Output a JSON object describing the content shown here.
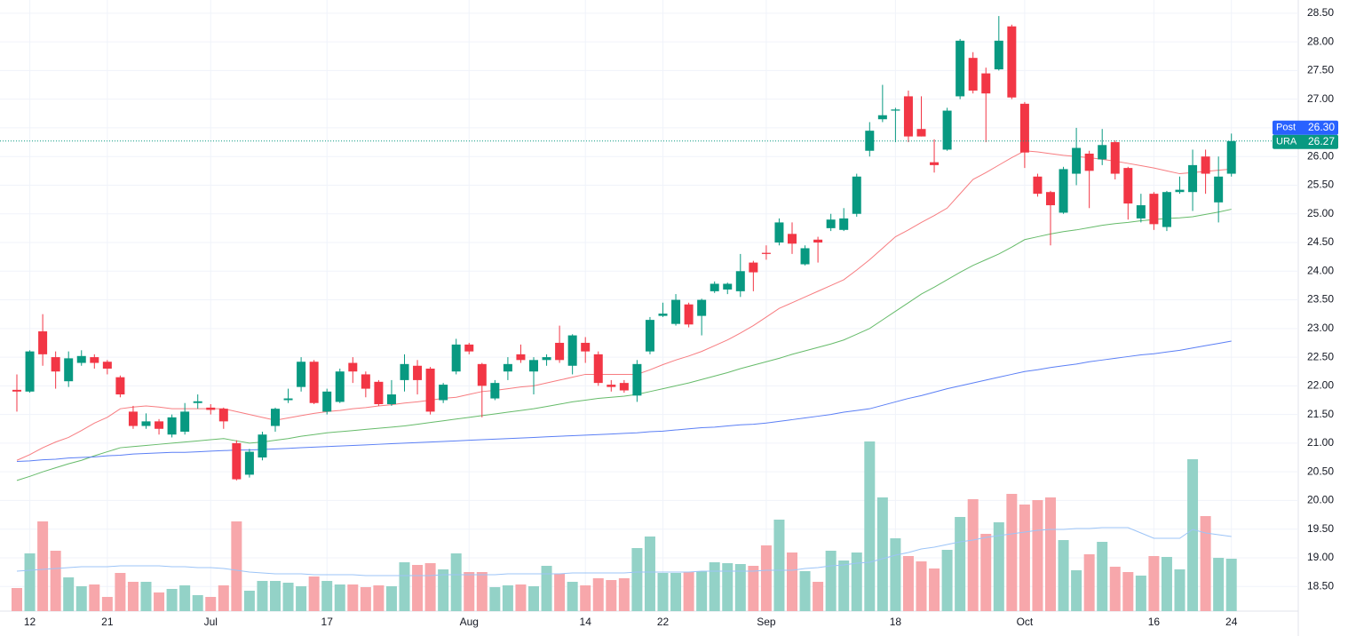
{
  "chart_data": {
    "type": "candlestick",
    "categories": [
      null,
      "12",
      null,
      null,
      null,
      null,
      null,
      "21",
      null,
      null,
      null,
      null,
      null,
      null,
      null,
      "Jul",
      null,
      null,
      null,
      null,
      null,
      null,
      null,
      null,
      "17",
      null,
      null,
      null,
      null,
      null,
      null,
      null,
      null,
      null,
      null,
      "Aug",
      null,
      null,
      null,
      null,
      null,
      null,
      null,
      null,
      "14",
      null,
      null,
      null,
      null,
      null,
      "22",
      null,
      null,
      null,
      null,
      null,
      null,
      null,
      "Sep",
      null,
      null,
      null,
      null,
      null,
      null,
      null,
      null,
      null,
      "18",
      null,
      null,
      null,
      null,
      null,
      null,
      null,
      null,
      null,
      "Oct",
      null,
      null,
      null,
      null,
      null,
      null,
      null,
      null,
      null,
      "16",
      null,
      null,
      null,
      null,
      null,
      "24"
    ],
    "open": [
      21.93,
      21.9,
      22.95,
      22.5,
      22.08,
      22.4,
      22.5,
      22.42,
      22.15,
      21.55,
      21.3,
      21.38,
      21.15,
      21.2,
      21.7,
      21.62,
      21.6,
      21.0,
      20.45,
      20.75,
      21.3,
      21.75,
      21.98,
      22.42,
      21.55,
      21.72,
      22.4,
      22.2,
      22.07,
      21.68,
      22.1,
      22.35,
      22.3,
      21.75,
      22.25,
      22.72,
      22.38,
      21.78,
      22.25,
      22.55,
      22.25,
      22.45,
      22.75,
      22.35,
      22.75,
      22.55,
      22.02,
      22.05,
      21.83,
      22.6,
      23.22,
      23.08,
      23.42,
      23.22,
      23.65,
      23.68,
      23.65,
      24.15,
      24.32,
      24.5,
      24.65,
      24.12,
      24.55,
      24.75,
      24.72,
      25.0,
      26.1,
      26.65,
      26.8,
      27.05,
      26.48,
      25.9,
      26.12,
      27.05,
      27.72,
      27.45,
      27.52,
      28.27,
      26.92,
      25.65,
      25.38,
      25.02,
      25.7,
      26.05,
      25.95,
      26.25,
      25.8,
      24.92,
      25.35,
      24.77,
      25.38,
      25.38,
      26.0,
      25.2,
      25.7
    ],
    "high": [
      22.2,
      22.62,
      23.25,
      22.6,
      22.6,
      22.62,
      22.55,
      22.45,
      22.18,
      21.65,
      21.52,
      21.42,
      21.5,
      21.7,
      21.85,
      21.68,
      21.62,
      21.05,
      20.9,
      21.2,
      21.62,
      21.95,
      22.5,
      22.45,
      21.95,
      22.3,
      22.5,
      22.25,
      22.1,
      22.1,
      22.55,
      22.45,
      22.33,
      22.05,
      22.82,
      22.75,
      22.4,
      22.1,
      22.5,
      22.72,
      22.5,
      22.55,
      23.05,
      22.9,
      22.85,
      22.6,
      22.1,
      22.1,
      22.45,
      23.2,
      23.45,
      23.6,
      23.45,
      23.52,
      23.82,
      23.8,
      24.3,
      24.18,
      24.45,
      24.92,
      24.85,
      24.45,
      24.6,
      25.0,
      25.1,
      25.7,
      26.6,
      27.25,
      26.85,
      27.15,
      27.05,
      26.3,
      26.85,
      28.05,
      27.82,
      27.55,
      28.45,
      28.3,
      26.95,
      25.7,
      25.4,
      25.82,
      26.5,
      26.1,
      26.48,
      26.28,
      25.82,
      25.35,
      25.38,
      25.4,
      25.65,
      26.12,
      26.12,
      26.0,
      26.4
    ],
    "low": [
      21.55,
      21.88,
      22.35,
      21.95,
      21.98,
      22.35,
      22.3,
      22.2,
      21.8,
      21.25,
      21.25,
      21.15,
      21.1,
      21.15,
      21.6,
      21.5,
      21.25,
      20.35,
      20.4,
      20.7,
      21.2,
      21.7,
      21.9,
      21.68,
      21.5,
      21.7,
      22.05,
      21.8,
      21.65,
      21.65,
      21.9,
      21.85,
      21.5,
      21.7,
      22.2,
      22.55,
      21.45,
      21.75,
      22.1,
      22.4,
      21.85,
      22.35,
      22.4,
      22.2,
      22.4,
      22.0,
      21.9,
      21.88,
      21.72,
      22.55,
      23.2,
      23.05,
      23.02,
      22.88,
      23.62,
      23.6,
      23.55,
      23.65,
      24.2,
      24.45,
      24.3,
      24.1,
      24.15,
      24.7,
      24.7,
      24.95,
      26.0,
      26.6,
      26.25,
      26.25,
      26.35,
      25.72,
      26.1,
      27.0,
      27.1,
      26.25,
      27.5,
      27.0,
      25.8,
      25.3,
      24.45,
      25.0,
      25.5,
      25.1,
      25.85,
      25.6,
      24.9,
      24.85,
      24.72,
      24.7,
      25.35,
      25.05,
      25.35,
      24.85,
      25.65
    ],
    "close": [
      21.9,
      22.6,
      22.55,
      22.25,
      22.48,
      22.52,
      22.4,
      22.3,
      21.85,
      21.3,
      21.38,
      21.25,
      21.45,
      21.55,
      21.73,
      21.58,
      21.38,
      20.37,
      20.85,
      21.15,
      21.6,
      21.78,
      22.42,
      21.7,
      21.9,
      22.25,
      22.25,
      21.95,
      21.68,
      21.85,
      22.38,
      22.1,
      21.55,
      22.02,
      22.72,
      22.6,
      22.0,
      22.05,
      22.38,
      22.45,
      22.45,
      22.5,
      22.45,
      22.88,
      22.6,
      22.05,
      21.98,
      21.92,
      22.38,
      23.15,
      23.26,
      23.5,
      23.07,
      23.5,
      23.78,
      23.78,
      24.0,
      23.98,
      24.3,
      24.85,
      24.48,
      24.4,
      24.5,
      24.9,
      24.92,
      25.65,
      26.45,
      26.72,
      26.82,
      26.35,
      26.35,
      25.85,
      26.8,
      28.02,
      27.15,
      27.1,
      28.02,
      27.03,
      26.07,
      25.35,
      25.15,
      25.78,
      26.15,
      25.75,
      26.2,
      25.7,
      25.18,
      25.15,
      24.82,
      25.38,
      25.42,
      25.85,
      25.7,
      25.65,
      26.27
    ],
    "up_color": "#089981",
    "down_color": "#f23645",
    "lines": [
      {
        "color": "#f77c80",
        "values": [
          20.7,
          20.8,
          20.92,
          21.02,
          21.1,
          21.22,
          21.35,
          21.45,
          21.6,
          21.63,
          21.65,
          21.63,
          21.6,
          21.6,
          21.6,
          21.6,
          21.6,
          21.55,
          21.5,
          21.45,
          21.4,
          21.44,
          21.48,
          21.52,
          21.55,
          21.57,
          21.6,
          21.62,
          21.65,
          21.67,
          21.7,
          21.72,
          21.75,
          21.78,
          21.8,
          21.85,
          21.9,
          21.92,
          21.95,
          21.98,
          22.0,
          22.05,
          22.1,
          22.15,
          22.2,
          22.2,
          22.2,
          22.2,
          22.2,
          22.28,
          22.37,
          22.45,
          22.52,
          22.6,
          22.7,
          22.8,
          22.92,
          23.05,
          23.2,
          23.35,
          23.45,
          23.55,
          23.65,
          23.75,
          23.85,
          24.02,
          24.2,
          24.4,
          24.6,
          24.72,
          24.85,
          24.97,
          25.1,
          25.35,
          25.6,
          25.72,
          25.85,
          25.98,
          26.1,
          26.08,
          26.05,
          26.02,
          26.0,
          25.98,
          25.95,
          25.92,
          25.88,
          25.84,
          25.8,
          25.75,
          25.7,
          25.72,
          25.74,
          25.76,
          25.78
        ]
      },
      {
        "color": "#66bb6a",
        "values": [
          20.35,
          20.42,
          20.5,
          20.57,
          20.64,
          20.7,
          20.78,
          20.85,
          20.92,
          20.94,
          20.96,
          20.98,
          21.0,
          21.02,
          21.04,
          21.06,
          21.08,
          21.04,
          21.0,
          21.02,
          21.05,
          21.08,
          21.12,
          21.15,
          21.18,
          21.2,
          21.22,
          21.24,
          21.26,
          21.28,
          21.3,
          21.33,
          21.36,
          21.39,
          21.42,
          21.45,
          21.48,
          21.51,
          21.54,
          21.57,
          21.6,
          21.64,
          21.68,
          21.72,
          21.75,
          21.78,
          21.8,
          21.82,
          21.85,
          21.9,
          21.95,
          22.0,
          22.05,
          22.11,
          22.17,
          22.23,
          22.3,
          22.36,
          22.42,
          22.48,
          22.55,
          22.61,
          22.67,
          22.73,
          22.8,
          22.9,
          23.0,
          23.15,
          23.3,
          23.45,
          23.6,
          23.72,
          23.85,
          23.98,
          24.1,
          24.2,
          24.3,
          24.42,
          24.55,
          24.6,
          24.65,
          24.69,
          24.72,
          24.76,
          24.8,
          24.83,
          24.85,
          24.88,
          24.9,
          24.92,
          24.93,
          24.95,
          24.99,
          25.03,
          25.08
        ]
      },
      {
        "color": "#5b7ff5",
        "values": [
          20.68,
          20.69,
          20.71,
          20.72,
          20.74,
          20.75,
          20.76,
          20.78,
          20.79,
          20.81,
          20.82,
          20.83,
          20.84,
          20.84,
          20.85,
          20.86,
          20.87,
          20.88,
          20.88,
          20.89,
          20.9,
          20.91,
          20.92,
          20.93,
          20.94,
          20.95,
          20.96,
          20.97,
          20.98,
          20.99,
          21.0,
          21.01,
          21.02,
          21.03,
          21.04,
          21.05,
          21.06,
          21.07,
          21.08,
          21.09,
          21.1,
          21.11,
          21.12,
          21.13,
          21.14,
          21.15,
          21.16,
          21.17,
          21.18,
          21.2,
          21.21,
          21.23,
          21.25,
          21.27,
          21.28,
          21.3,
          21.32,
          21.33,
          21.35,
          21.38,
          21.41,
          21.44,
          21.47,
          21.5,
          21.54,
          21.57,
          21.6,
          21.66,
          21.72,
          21.78,
          21.83,
          21.89,
          21.95,
          22.0,
          22.05,
          22.1,
          22.15,
          22.2,
          22.25,
          22.28,
          22.32,
          22.35,
          22.38,
          22.42,
          22.45,
          22.48,
          22.51,
          22.54,
          22.56,
          22.59,
          22.62,
          22.66,
          22.7,
          22.74,
          22.78
        ]
      }
    ],
    "volume": {
      "up_color": "#93d2c7",
      "down_color": "#f7a7ab",
      "values": [
        26,
        65,
        101,
        68,
        38,
        28,
        30,
        16,
        43,
        33,
        33,
        21,
        25,
        29,
        18,
        16,
        29,
        101,
        23,
        34,
        34,
        32,
        28,
        39,
        34,
        30,
        30,
        27,
        29,
        28,
        55,
        52,
        54,
        47,
        65,
        44,
        44,
        27,
        29,
        30,
        28,
        51,
        42,
        33,
        29,
        37,
        35,
        37,
        71,
        84,
        43,
        43,
        44,
        45,
        55,
        54,
        53,
        51,
        74,
        103,
        66,
        45,
        33,
        68,
        57,
        66,
        191,
        128,
        82,
        62,
        56,
        48,
        69,
        106,
        126,
        87,
        100,
        132,
        120,
        125,
        128,
        80,
        46,
        64,
        78,
        50,
        44,
        40,
        62,
        61,
        47,
        171,
        107,
        60,
        59
      ],
      "ma_color": "#9cc4f7",
      "ma": [
        45,
        46,
        47,
        48,
        49,
        50,
        50,
        50,
        51,
        51,
        51,
        51,
        50,
        50,
        49,
        49,
        48,
        46,
        44,
        43,
        42,
        42,
        42,
        41,
        41,
        41,
        41,
        40,
        40,
        40,
        40,
        40,
        40,
        41,
        41,
        41,
        41,
        41,
        42,
        42,
        42,
        42,
        42,
        43,
        43,
        43,
        43,
        43,
        44,
        44,
        44,
        44,
        44,
        45,
        45,
        45,
        45,
        45,
        46,
        46,
        46,
        48,
        49,
        51,
        52,
        54,
        55,
        59,
        63,
        66,
        70,
        72,
        75,
        78,
        80,
        83,
        85,
        87,
        89,
        91,
        92,
        92,
        93,
        93,
        94,
        94,
        94,
        88,
        82,
        82,
        82,
        92,
        88,
        86,
        84
      ]
    },
    "ylim": [
      18.07,
      28.73
    ],
    "yticks": [
      {
        "value": 18.5,
        "label": "18.50"
      },
      {
        "value": 19,
        "label": "19.00"
      },
      {
        "value": 19.5,
        "label": "19.50"
      },
      {
        "value": 20,
        "label": "20.00"
      },
      {
        "value": 20.5,
        "label": "20.50"
      },
      {
        "value": 21,
        "label": "21.00"
      },
      {
        "value": 21.5,
        "label": "21.50"
      },
      {
        "value": 22,
        "label": "22.00"
      },
      {
        "value": 22.5,
        "label": "22.50"
      },
      {
        "value": 23,
        "label": "23.00"
      },
      {
        "value": 23.5,
        "label": "23.50"
      },
      {
        "value": 24,
        "label": "24.00"
      },
      {
        "value": 24.5,
        "label": "24.50"
      },
      {
        "value": 25,
        "label": "25.00"
      },
      {
        "value": 25.5,
        "label": "25.50"
      },
      {
        "value": 26,
        "label": "26.00"
      },
      {
        "value": 26.5,
        "label": "26.50"
      },
      {
        "value": 27,
        "label": "27.00"
      },
      {
        "value": 27.5,
        "label": "27.50"
      },
      {
        "value": 28,
        "label": "28.00"
      },
      {
        "value": 28.5,
        "label": "28.50"
      }
    ],
    "last_price": {
      "name": "URA",
      "value": 26.27,
      "label": "26.27",
      "color": "#089981"
    },
    "post_price": {
      "name": "Post",
      "value": 26.3,
      "label": "26.30",
      "color": "#2962ff"
    },
    "grid": true
  }
}
